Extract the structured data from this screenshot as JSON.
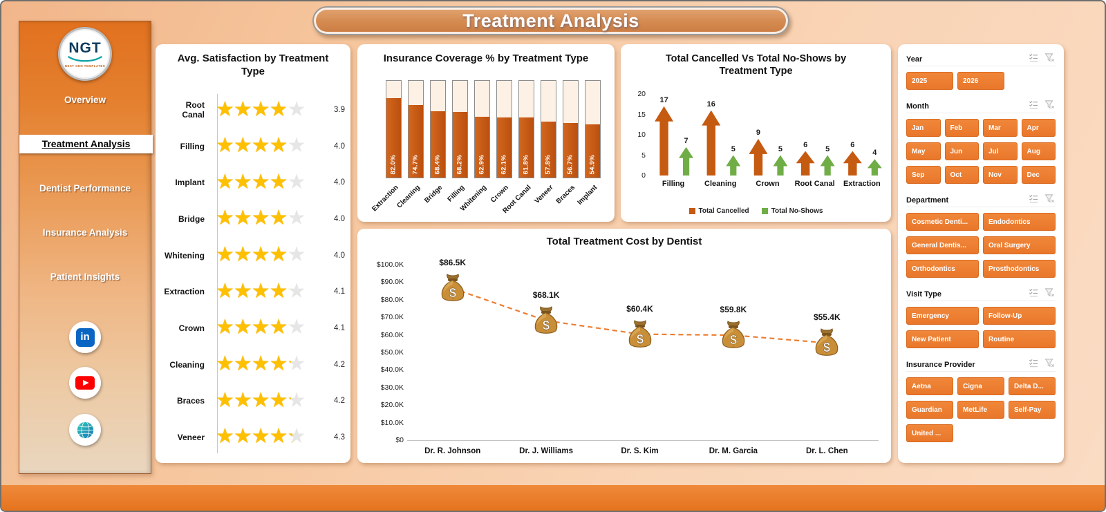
{
  "app": {
    "title": "Treatment Analysis"
  },
  "sidebar": {
    "logo": {
      "text": "NGT",
      "caption": "NEXT GEN TEMPLATES"
    },
    "items": [
      {
        "label": "Overview",
        "active": false
      },
      {
        "label": "Treatment Analysis",
        "active": true
      },
      {
        "label": "Dentist Performance",
        "active": false
      },
      {
        "label": "Insurance Analysis",
        "active": false
      },
      {
        "label": "Patient Insights",
        "active": false
      }
    ]
  },
  "icons": {
    "linkedin_glyph": "in",
    "money_bag_glyph": "$",
    "star_row": "★★★★★"
  },
  "chart_data": [
    {
      "id": "satisfaction",
      "type": "bar",
      "orientation": "horizontal",
      "marker": "stars",
      "title": "Avg. Satisfaction by Treatment Type",
      "categories": [
        "Root Canal",
        "Filling",
        "Implant",
        "Bridge",
        "Whitening",
        "Extraction",
        "Crown",
        "Cleaning",
        "Braces",
        "Veneer"
      ],
      "values": [
        3.9,
        4.0,
        4.0,
        4.0,
        4.0,
        4.1,
        4.1,
        4.2,
        4.2,
        4.3
      ],
      "value_labels": [
        "3.9",
        "4.0",
        "4.0",
        "4.0",
        "4.0",
        "4.1",
        "4.1",
        "4.2",
        "4.2",
        "4.3"
      ],
      "scale_max": 5
    },
    {
      "id": "insurance-coverage",
      "type": "bar",
      "title": "Insurance Coverage % by Treatment Type",
      "categories": [
        "Extraction",
        "Cleaning",
        "Bridge",
        "Filling",
        "Whitening",
        "Crown",
        "Root Canal",
        "Veneer",
        "Braces",
        "Implant"
      ],
      "values": [
        82.0,
        74.7,
        68.4,
        68.2,
        62.9,
        62.1,
        61.8,
        57.8,
        56.7,
        54.9
      ],
      "value_labels": [
        "82.0%",
        "74.7%",
        "68.4%",
        "68.2%",
        "62.9%",
        "62.1%",
        "61.8%",
        "57.8%",
        "56.7%",
        "54.9%"
      ],
      "ylim": [
        0,
        100
      ]
    },
    {
      "id": "cancelled-vs-noshows",
      "type": "bar",
      "marker": "arrow",
      "title": "Total Cancelled Vs Total No-Shows by Treatment Type",
      "categories": [
        "Filling",
        "Cleaning",
        "Crown",
        "Root Canal",
        "Extraction"
      ],
      "series": [
        {
          "name": "Total Cancelled",
          "color": "#C55A11",
          "values": [
            17,
            16,
            9,
            6,
            6
          ]
        },
        {
          "name": "Total No-Shows",
          "color": "#70AD47",
          "values": [
            7,
            5,
            5,
            5,
            4
          ]
        }
      ],
      "ylim": [
        0,
        20
      ],
      "yticks": [
        0,
        5,
        10,
        15,
        20
      ],
      "legend_position": "bottom"
    },
    {
      "id": "cost-by-dentist",
      "type": "line",
      "line_style": "dashed",
      "marker": "money-bag",
      "title": "Total Treatment Cost by Dentist",
      "categories": [
        "Dr. R. Johnson",
        "Dr. J. Williams",
        "Dr. S. Kim",
        "Dr. M. Garcia",
        "Dr. L. Chen"
      ],
      "values": [
        86500,
        68100,
        60400,
        59800,
        55400
      ],
      "value_labels": [
        "$86.5K",
        "$68.1K",
        "$60.4K",
        "$59.8K",
        "$55.4K"
      ],
      "ylim": [
        0,
        100000
      ],
      "ytick_labels": [
        "$0",
        "$10.0K",
        "$20.0K",
        "$30.0K",
        "$40.0K",
        "$50.0K",
        "$60.0K",
        "$70.0K",
        "$80.0K",
        "$90.0K",
        "$100.0K"
      ]
    }
  ],
  "filters": {
    "sections": [
      {
        "key": "year",
        "label": "Year",
        "options": [
          "2025",
          "2026"
        ]
      },
      {
        "key": "month",
        "label": "Month",
        "options": [
          "Jan",
          "Feb",
          "Mar",
          "Apr",
          "May",
          "Jun",
          "Jul",
          "Aug",
          "Sep",
          "Oct",
          "Nov",
          "Dec"
        ]
      },
      {
        "key": "department",
        "label": "Department",
        "options": [
          "Cosmetic Denti...",
          "Endodontics",
          "General Dentis...",
          "Oral Surgery",
          "Orthodontics",
          "Prosthodontics"
        ]
      },
      {
        "key": "visit-type",
        "label": "Visit Type",
        "options": [
          "Emergency",
          "Follow-Up",
          "New Patient",
          "Routine"
        ]
      },
      {
        "key": "insurance-provider",
        "label": "Insurance Provider",
        "options": [
          "Aetna",
          "Cigna",
          "Delta D...",
          "Guardian",
          "MetLife",
          "Self-Pay",
          "United ..."
        ]
      }
    ]
  },
  "colors": {
    "accent": "#ED7D31",
    "bar_fill": "#C55A11",
    "noshow_green": "#70AD47",
    "star_gold": "#FFC000",
    "band_orange": "#E87722"
  }
}
